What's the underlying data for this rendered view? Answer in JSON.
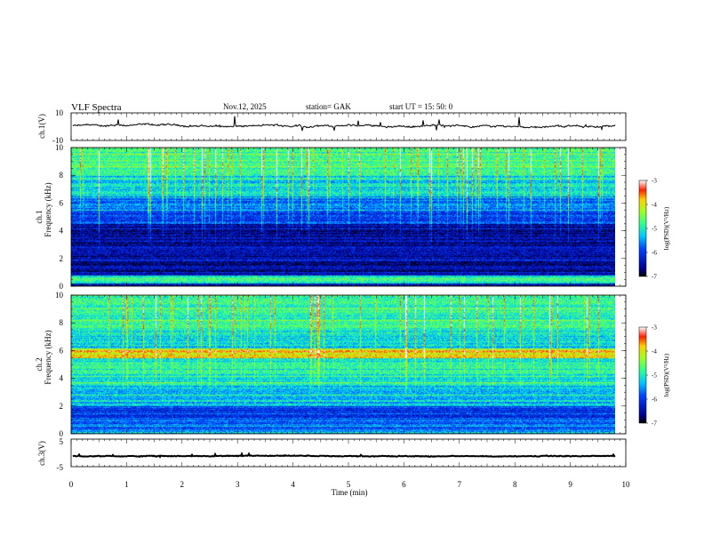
{
  "header": {
    "title": "VLF  Spectra",
    "date": "Nov.12, 2025",
    "station": "station= GAK",
    "start": "start  UT  =    15: 50: 0"
  },
  "chart_data": {
    "type": "heatmap",
    "xlabel": "Time  (min)",
    "xlim": [
      0,
      10
    ],
    "x_ticks": [
      "0",
      "1",
      "2",
      "3",
      "4",
      "5",
      "6",
      "7",
      "8",
      "9",
      "10"
    ],
    "panels": [
      {
        "kind": "waveform",
        "ylabel": "ch.1(V)",
        "ylim": [
          -10,
          10
        ],
        "y_ticks": [
          "10",
          "-10"
        ],
        "baseline": 0.5
      },
      {
        "kind": "spectrogram",
        "ylabel_top": "ch.1",
        "ylabel": "Frequency  (kHz)",
        "ylim": [
          0,
          10
        ],
        "y_ticks": [
          "0",
          "2",
          "4",
          "6",
          "8",
          "10"
        ],
        "colorbar": {
          "label": "log(PSD)(V²/Hz)",
          "range": [
            -7,
            -3
          ],
          "ticks": [
            "-3",
            "-4",
            "-5",
            "-6",
            "-7"
          ]
        }
      },
      {
        "kind": "spectrogram",
        "ylabel_top": "ch.2",
        "ylabel": "Frequency  (kHz)",
        "ylim": [
          0,
          10
        ],
        "y_ticks": [
          "0",
          "2",
          "4",
          "6",
          "8",
          "10"
        ],
        "colorbar": {
          "label": "log(PSD)(V²/Hz)",
          "range": [
            -7,
            -3
          ],
          "ticks": [
            "-3",
            "-4",
            "-5",
            "-6",
            "-7"
          ]
        }
      },
      {
        "kind": "waveform",
        "ylabel": "ch.3(V)",
        "ylim": [
          -5,
          5
        ],
        "y_ticks": [
          "5",
          "-5"
        ],
        "baseline": -1.2
      }
    ]
  }
}
